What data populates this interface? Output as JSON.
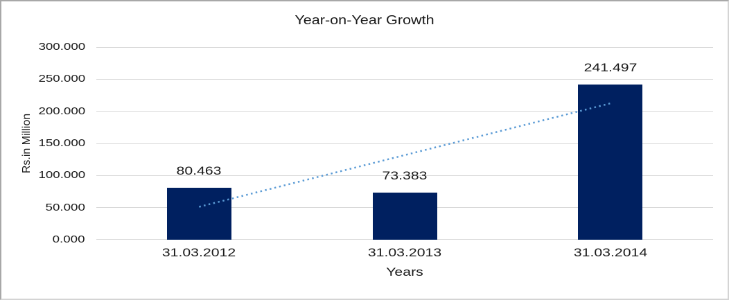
{
  "chart_data": {
    "type": "bar",
    "title": "Year-on-Year Growth",
    "xlabel": "Years",
    "ylabel": "Rs.in Million",
    "categories": [
      "31.03.2012",
      "31.03.2013",
      "31.03.2014"
    ],
    "values": [
      80.463,
      73.383,
      241.497
    ],
    "value_labels": [
      "80.463",
      "73.383",
      "241.497"
    ],
    "ylim": [
      0,
      300
    ],
    "yticks": [
      0,
      50,
      100,
      150,
      200,
      250,
      300
    ],
    "ytick_labels": [
      "0.000",
      "50.000",
      "100.000",
      "150.000",
      "200.000",
      "250.000",
      "300.000"
    ],
    "grid": true,
    "legend": false,
    "bar_color": "#002060",
    "trendline": {
      "type": "linear",
      "style": "dotted",
      "color": "#5B9BD5"
    },
    "gridline_color": "#D9D9D9",
    "axis_line_color": "#D9D9D9",
    "text_color": "#1A1A1A",
    "background_color": "#FFFFFF",
    "border_color": "#ABABAB"
  }
}
